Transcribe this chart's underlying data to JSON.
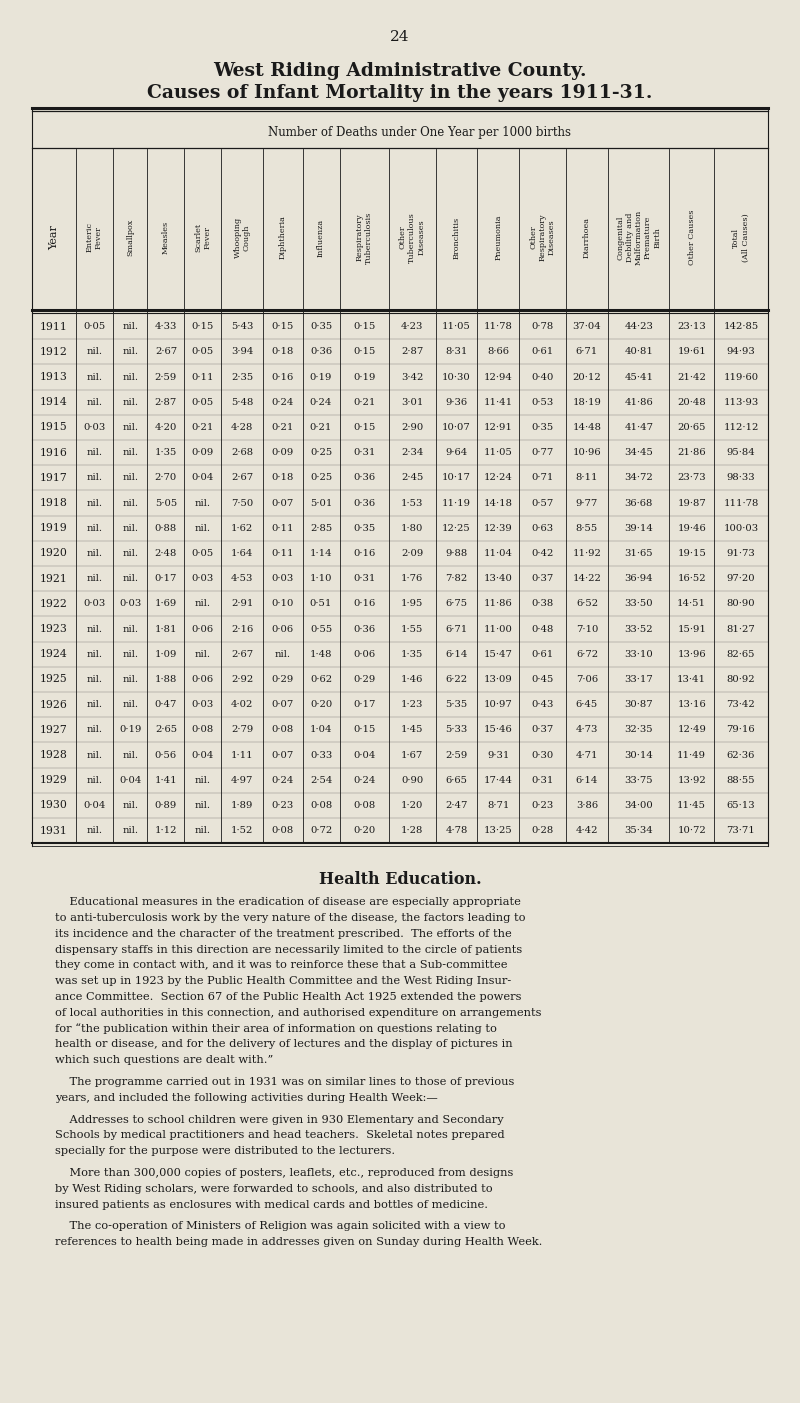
{
  "page_number": "24",
  "title_line1": "West Riding Administrative County.",
  "title_line2": "Causes of Infant Mortality in the years 1911-31.",
  "subtitle": "Number of Deaths under One Year per 1000 births",
  "col_headers": [
    "Enteric\nFever",
    "Smallpox",
    "Measles",
    "Scarlet\nFever",
    "Whooping\nCough",
    "Diphtheria",
    "Influenza",
    "Respiratory\nTuberculosis",
    "Other\nTuberculous\nDiseases",
    "Bronchitis",
    "Pneumonia",
    "Other\nRespiratory\nDiseases",
    "Diarrhoea",
    "Congenital\nDebility and\nMalformation\nPremature\nBirth",
    "Other Causes",
    "Total\n(All Causes)"
  ],
  "years": [
    1911,
    1912,
    1913,
    1914,
    1915,
    1916,
    1917,
    1918,
    1919,
    1920,
    1921,
    1922,
    1923,
    1924,
    1925,
    1926,
    1927,
    1928,
    1929,
    1930,
    1931
  ],
  "data": [
    [
      "0·05",
      "nil.",
      "4·33",
      "0·15",
      "5·43",
      "0·15",
      "0·35",
      "0·15",
      "4·23",
      "11·05",
      "11·78",
      "0·78",
      "37·04",
      "44·23",
      "23·13",
      "142·85"
    ],
    [
      "nil.",
      "nil.",
      "2·67",
      "0·05",
      "3·94",
      "0·18",
      "0·36",
      "0·15",
      "2·87",
      "8·31",
      "8·66",
      "0·61",
      "6·71",
      "40·81",
      "19·61",
      "94·93"
    ],
    [
      "nil.",
      "nil.",
      "2·59",
      "0·11",
      "2·35",
      "0·16",
      "0·19",
      "0·19",
      "3·42",
      "10·30",
      "12·94",
      "0·40",
      "20·12",
      "45·41",
      "21·42",
      "119·60"
    ],
    [
      "nil.",
      "nil.",
      "2·87",
      "0·05",
      "5·48",
      "0·24",
      "0·24",
      "0·21",
      "3·01",
      "9·36",
      "11·41",
      "0·53",
      "18·19",
      "41·86",
      "20·48",
      "113·93"
    ],
    [
      "0·03",
      "nil.",
      "4·20",
      "0·21",
      "4·28",
      "0·21",
      "0·21",
      "0·15",
      "2·90",
      "10·07",
      "12·91",
      "0·35",
      "14·48",
      "41·47",
      "20·65",
      "112·12"
    ],
    [
      "nil.",
      "nil.",
      "1·35",
      "0·09",
      "2·68",
      "0·09",
      "0·25",
      "0·31",
      "2·34",
      "9·64",
      "11·05",
      "0·77",
      "10·96",
      "34·45",
      "21·86",
      "95·84"
    ],
    [
      "nil.",
      "nil.",
      "2·70",
      "0·04",
      "2·67",
      "0·18",
      "0·25",
      "0·36",
      "2·45",
      "10·17",
      "12·24",
      "0·71",
      "8·11",
      "34·72",
      "23·73",
      "98·33"
    ],
    [
      "nil.",
      "nil.",
      "5·05",
      "nil.",
      "7·50",
      "0·07",
      "5·01",
      "0·36",
      "1·53",
      "11·19",
      "14·18",
      "0·57",
      "9·77",
      "36·68",
      "19·87",
      "111·78"
    ],
    [
      "nil.",
      "nil.",
      "0·88",
      "nil.",
      "1·62",
      "0·11",
      "2·85",
      "0·35",
      "1·80",
      "12·25",
      "12·39",
      "0·63",
      "8·55",
      "39·14",
      "19·46",
      "100·03"
    ],
    [
      "nil.",
      "nil.",
      "2·48",
      "0·05",
      "1·64",
      "0·11",
      "1·14",
      "0·16",
      "2·09",
      "9·88",
      "11·04",
      "0·42",
      "11·92",
      "31·65",
      "19·15",
      "91·73"
    ],
    [
      "nil.",
      "nil.",
      "0·17",
      "0·03",
      "4·53",
      "0·03",
      "1·10",
      "0·31",
      "1·76",
      "7·82",
      "13·40",
      "0·37",
      "14·22",
      "36·94",
      "16·52",
      "97·20"
    ],
    [
      "0·03",
      "0·03",
      "1·69",
      "nil.",
      "2·91",
      "0·10",
      "0·51",
      "0·16",
      "1·95",
      "6·75",
      "11·86",
      "0·38",
      "6·52",
      "33·50",
      "14·51",
      "80·90"
    ],
    [
      "nil.",
      "nil.",
      "1·81",
      "0·06",
      "2·16",
      "0·06",
      "0·55",
      "0·36",
      "1·55",
      "6·71",
      "11·00",
      "0·48",
      "7·10",
      "33·52",
      "15·91",
      "81·27"
    ],
    [
      "nil.",
      "nil.",
      "1·09",
      "nil.",
      "2·67",
      "nil.",
      "1·48",
      "0·06",
      "1·35",
      "6·14",
      "15·47",
      "0·61",
      "6·72",
      "33·10",
      "13·96",
      "82·65"
    ],
    [
      "nil.",
      "nil.",
      "1·88",
      "0·06",
      "2·92",
      "0·29",
      "0·62",
      "0·29",
      "1·46",
      "6·22",
      "13·09",
      "0·45",
      "7·06",
      "33·17",
      "13·41",
      "80·92"
    ],
    [
      "nil.",
      "nil.",
      "0·47",
      "0·03",
      "4·02",
      "0·07",
      "0·20",
      "0·17",
      "1·23",
      "5·35",
      "10·97",
      "0·43",
      "6·45",
      "30·87",
      "13·16",
      "73·42"
    ],
    [
      "nil.",
      "0·19",
      "2·65",
      "0·08",
      "2·79",
      "0·08",
      "1·04",
      "0·15",
      "1·45",
      "5·33",
      "15·46",
      "0·37",
      "4·73",
      "32·35",
      "12·49",
      "79·16"
    ],
    [
      "nil.",
      "nil.",
      "0·56",
      "0·04",
      "1·11",
      "0·07",
      "0·33",
      "0·04",
      "1·67",
      "2·59",
      "9·31",
      "0·30",
      "4·71",
      "30·14",
      "11·49",
      "62·36"
    ],
    [
      "nil.",
      "0·04",
      "1·41",
      "nil.",
      "4·97",
      "0·24",
      "2·54",
      "0·24",
      "0·90",
      "6·65",
      "17·44",
      "0·31",
      "6·14",
      "33·75",
      "13·92",
      "88·55"
    ],
    [
      "0·04",
      "nil.",
      "0·89",
      "nil.",
      "1·89",
      "0·23",
      "0·08",
      "0·08",
      "1·20",
      "2·47",
      "8·71",
      "0·23",
      "3·86",
      "34·00",
      "11·45",
      "65·13"
    ],
    [
      "nil.",
      "nil.",
      "1·12",
      "nil.",
      "1·52",
      "0·08",
      "0·72",
      "0·20",
      "1·28",
      "4·78",
      "13·25",
      "0·28",
      "4·42",
      "35·34",
      "10·72",
      "73·71"
    ]
  ],
  "health_education_title": "Health Education.",
  "health_education_paragraphs": [
    [
      "    Educational measures in the eradication of disease are especially appropriate",
      "to anti-tuberculosis work by the very nature of the disease, the factors leading to",
      "its incidence and the character of the treatment prescribed.  The efforts of the",
      "dispensary staffs in this direction are necessarily limited to the circle of patients",
      "they come in contact with, and it was to reinforce these that a Sub-committee",
      "was set up in 1923 by the Public Health Committee and the West Riding Insur-",
      "ance Committee.  Section 67 of the Public Health Act 1925 extended the powers",
      "of local authorities in this connection, and authorised expenditure on arrangements",
      "for “the publication within their area of information on questions relating to",
      "health or disease, and for the delivery of lectures and the display of pictures in",
      "which such questions are dealt with.”"
    ],
    [
      "    The programme carried out in 1931 was on similar lines to those of previous",
      "years, and included the following activities during Health Week:—"
    ],
    [
      "    Addresses to school children were given in 930 Elementary and Secondary",
      "Schools by medical practitioners and head teachers.  Skeletal notes prepared",
      "specially for the purpose were distributed to the lecturers."
    ],
    [
      "    More than 300,000 copies of posters, leaflets, etc., reproduced from designs",
      "by West Riding scholars, were forwarded to schools, and also distributed to",
      "insured patients as enclosures with medical cards and bottles of medicine."
    ],
    [
      "    The co-operation of Ministers of Religion was again solicited with a view to",
      "references to health being made in addresses given on Sunday during Health Week."
    ]
  ],
  "bg_color": "#e8e4d8",
  "text_color": "#1a1a1a",
  "line_color": "#1a1a1a"
}
